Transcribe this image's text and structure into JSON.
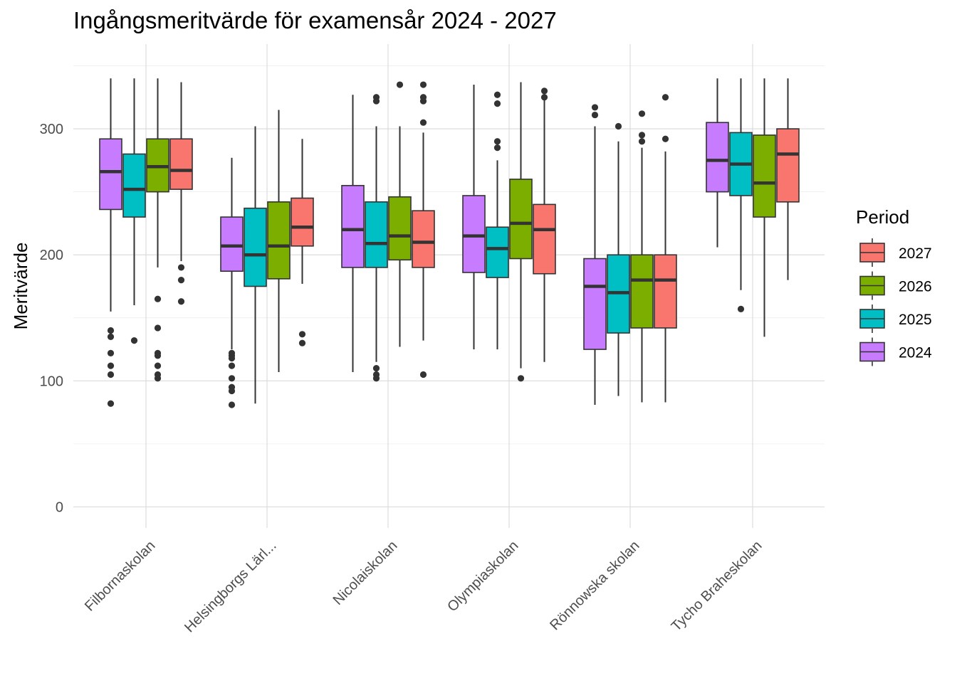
{
  "chart_data": {
    "type": "boxplot",
    "title": "Ingångsmeritvärde för examensår 2024 - 2027",
    "xlabel": "",
    "ylabel": "Meritvärde",
    "ylim": [
      -12,
      352
    ],
    "y_ticks": [
      0,
      100,
      200,
      300
    ],
    "grid": true,
    "legend": {
      "title": "Period",
      "position": "right",
      "entries": [
        {
          "label": "2027",
          "color": "#F8766D"
        },
        {
          "label": "2026",
          "color": "#7CAE00"
        },
        {
          "label": "2025",
          "color": "#00BFC4"
        },
        {
          "label": "2024",
          "color": "#C77CFF"
        }
      ]
    },
    "series_order": [
      "2024",
      "2025",
      "2026",
      "2027"
    ],
    "series_colors": {
      "2024": "#C77CFF",
      "2025": "#00BFC4",
      "2026": "#7CAE00",
      "2027": "#F8766D"
    },
    "categories": [
      "Filbornaskolan",
      "Helsingborgs Lärl...",
      "Nicolaiskolan",
      "Olympiaskolan",
      "Rönnowska skolan",
      "Tycho Braheskolan"
    ],
    "groups": [
      {
        "category": "Filbornaskolan",
        "boxes": [
          {
            "period": "2024",
            "min": 155,
            "q1": 236,
            "median": 266,
            "q3": 292,
            "max": 340,
            "outliers": [
              140,
              135,
              122,
              112,
              105,
              82
            ]
          },
          {
            "period": "2025",
            "min": 160,
            "q1": 230,
            "median": 252,
            "q3": 280,
            "max": 340,
            "outliers": [
              132
            ]
          },
          {
            "period": "2026",
            "min": 190,
            "q1": 250,
            "median": 270,
            "q3": 292,
            "max": 340,
            "outliers": [
              165,
              142,
              122,
              120,
              112,
              105,
              102
            ]
          },
          {
            "period": "2027",
            "min": 195,
            "q1": 252,
            "median": 267,
            "q3": 292,
            "max": 337,
            "outliers": [
              190,
              180,
              163
            ]
          }
        ]
      },
      {
        "category": "Helsingborgs Lärl...",
        "boxes": [
          {
            "period": "2024",
            "min": 125,
            "q1": 187,
            "median": 207,
            "q3": 230,
            "max": 277,
            "outliers": [
              122,
              120,
              118,
              112,
              102,
              95,
              92,
              81
            ]
          },
          {
            "period": "2025",
            "min": 82,
            "q1": 175,
            "median": 200,
            "q3": 237,
            "max": 302,
            "outliers": []
          },
          {
            "period": "2026",
            "min": 107,
            "q1": 181,
            "median": 207,
            "q3": 242,
            "max": 315,
            "outliers": []
          },
          {
            "period": "2027",
            "min": 177,
            "q1": 207,
            "median": 222,
            "q3": 245,
            "max": 292,
            "outliers": [
              137,
              130
            ]
          }
        ]
      },
      {
        "category": "Nicolaiskolan",
        "boxes": [
          {
            "period": "2024",
            "min": 107,
            "q1": 190,
            "median": 220,
            "q3": 255,
            "max": 327,
            "outliers": []
          },
          {
            "period": "2025",
            "min": 115,
            "q1": 190,
            "median": 209,
            "q3": 242,
            "max": 302,
            "outliers": [
              325,
              322,
              110,
              105,
              102
            ]
          },
          {
            "period": "2026",
            "min": 127,
            "q1": 196,
            "median": 215,
            "q3": 246,
            "max": 302,
            "outliers": [
              335
            ]
          },
          {
            "period": "2027",
            "min": 132,
            "q1": 190,
            "median": 210,
            "q3": 235,
            "max": 297,
            "outliers": [
              335,
              325,
              322,
              305,
              105
            ]
          }
        ]
      },
      {
        "category": "Olympiaskolan",
        "boxes": [
          {
            "period": "2024",
            "min": 125,
            "q1": 186,
            "median": 215,
            "q3": 247,
            "max": 335,
            "outliers": []
          },
          {
            "period": "2025",
            "min": 125,
            "q1": 182,
            "median": 205,
            "q3": 222,
            "max": 275,
            "outliers": [
              327,
              320,
              290,
              285
            ]
          },
          {
            "period": "2026",
            "min": 110,
            "q1": 197,
            "median": 225,
            "q3": 260,
            "max": 337,
            "outliers": [
              102
            ]
          },
          {
            "period": "2027",
            "min": 115,
            "q1": 185,
            "median": 220,
            "q3": 240,
            "max": 327,
            "outliers": [
              330,
              325
            ]
          }
        ]
      },
      {
        "category": "Rönnowska skolan",
        "boxes": [
          {
            "period": "2024",
            "min": 81,
            "q1": 125,
            "median": 175,
            "q3": 197,
            "max": 302,
            "outliers": [
              317,
              311
            ]
          },
          {
            "period": "2025",
            "min": 88,
            "q1": 138,
            "median": 170,
            "q3": 200,
            "max": 290,
            "outliers": [
              302
            ]
          },
          {
            "period": "2026",
            "min": 83,
            "q1": 142,
            "median": 180,
            "q3": 200,
            "max": 285,
            "outliers": [
              312,
              295,
              290
            ]
          },
          {
            "period": "2027",
            "min": 83,
            "q1": 142,
            "median": 180,
            "q3": 200,
            "max": 282,
            "outliers": [
              325,
              292
            ]
          }
        ]
      },
      {
        "category": "Tycho Braheskolan",
        "boxes": [
          {
            "period": "2024",
            "min": 206,
            "q1": 250,
            "median": 275,
            "q3": 305,
            "max": 340,
            "outliers": []
          },
          {
            "period": "2025",
            "min": 172,
            "q1": 247,
            "median": 272,
            "q3": 297,
            "max": 340,
            "outliers": [
              157
            ]
          },
          {
            "period": "2026",
            "min": 135,
            "q1": 230,
            "median": 257,
            "q3": 295,
            "max": 340,
            "outliers": []
          },
          {
            "period": "2027",
            "min": 180,
            "q1": 242,
            "median": 280,
            "q3": 300,
            "max": 340,
            "outliers": []
          }
        ]
      }
    ]
  }
}
